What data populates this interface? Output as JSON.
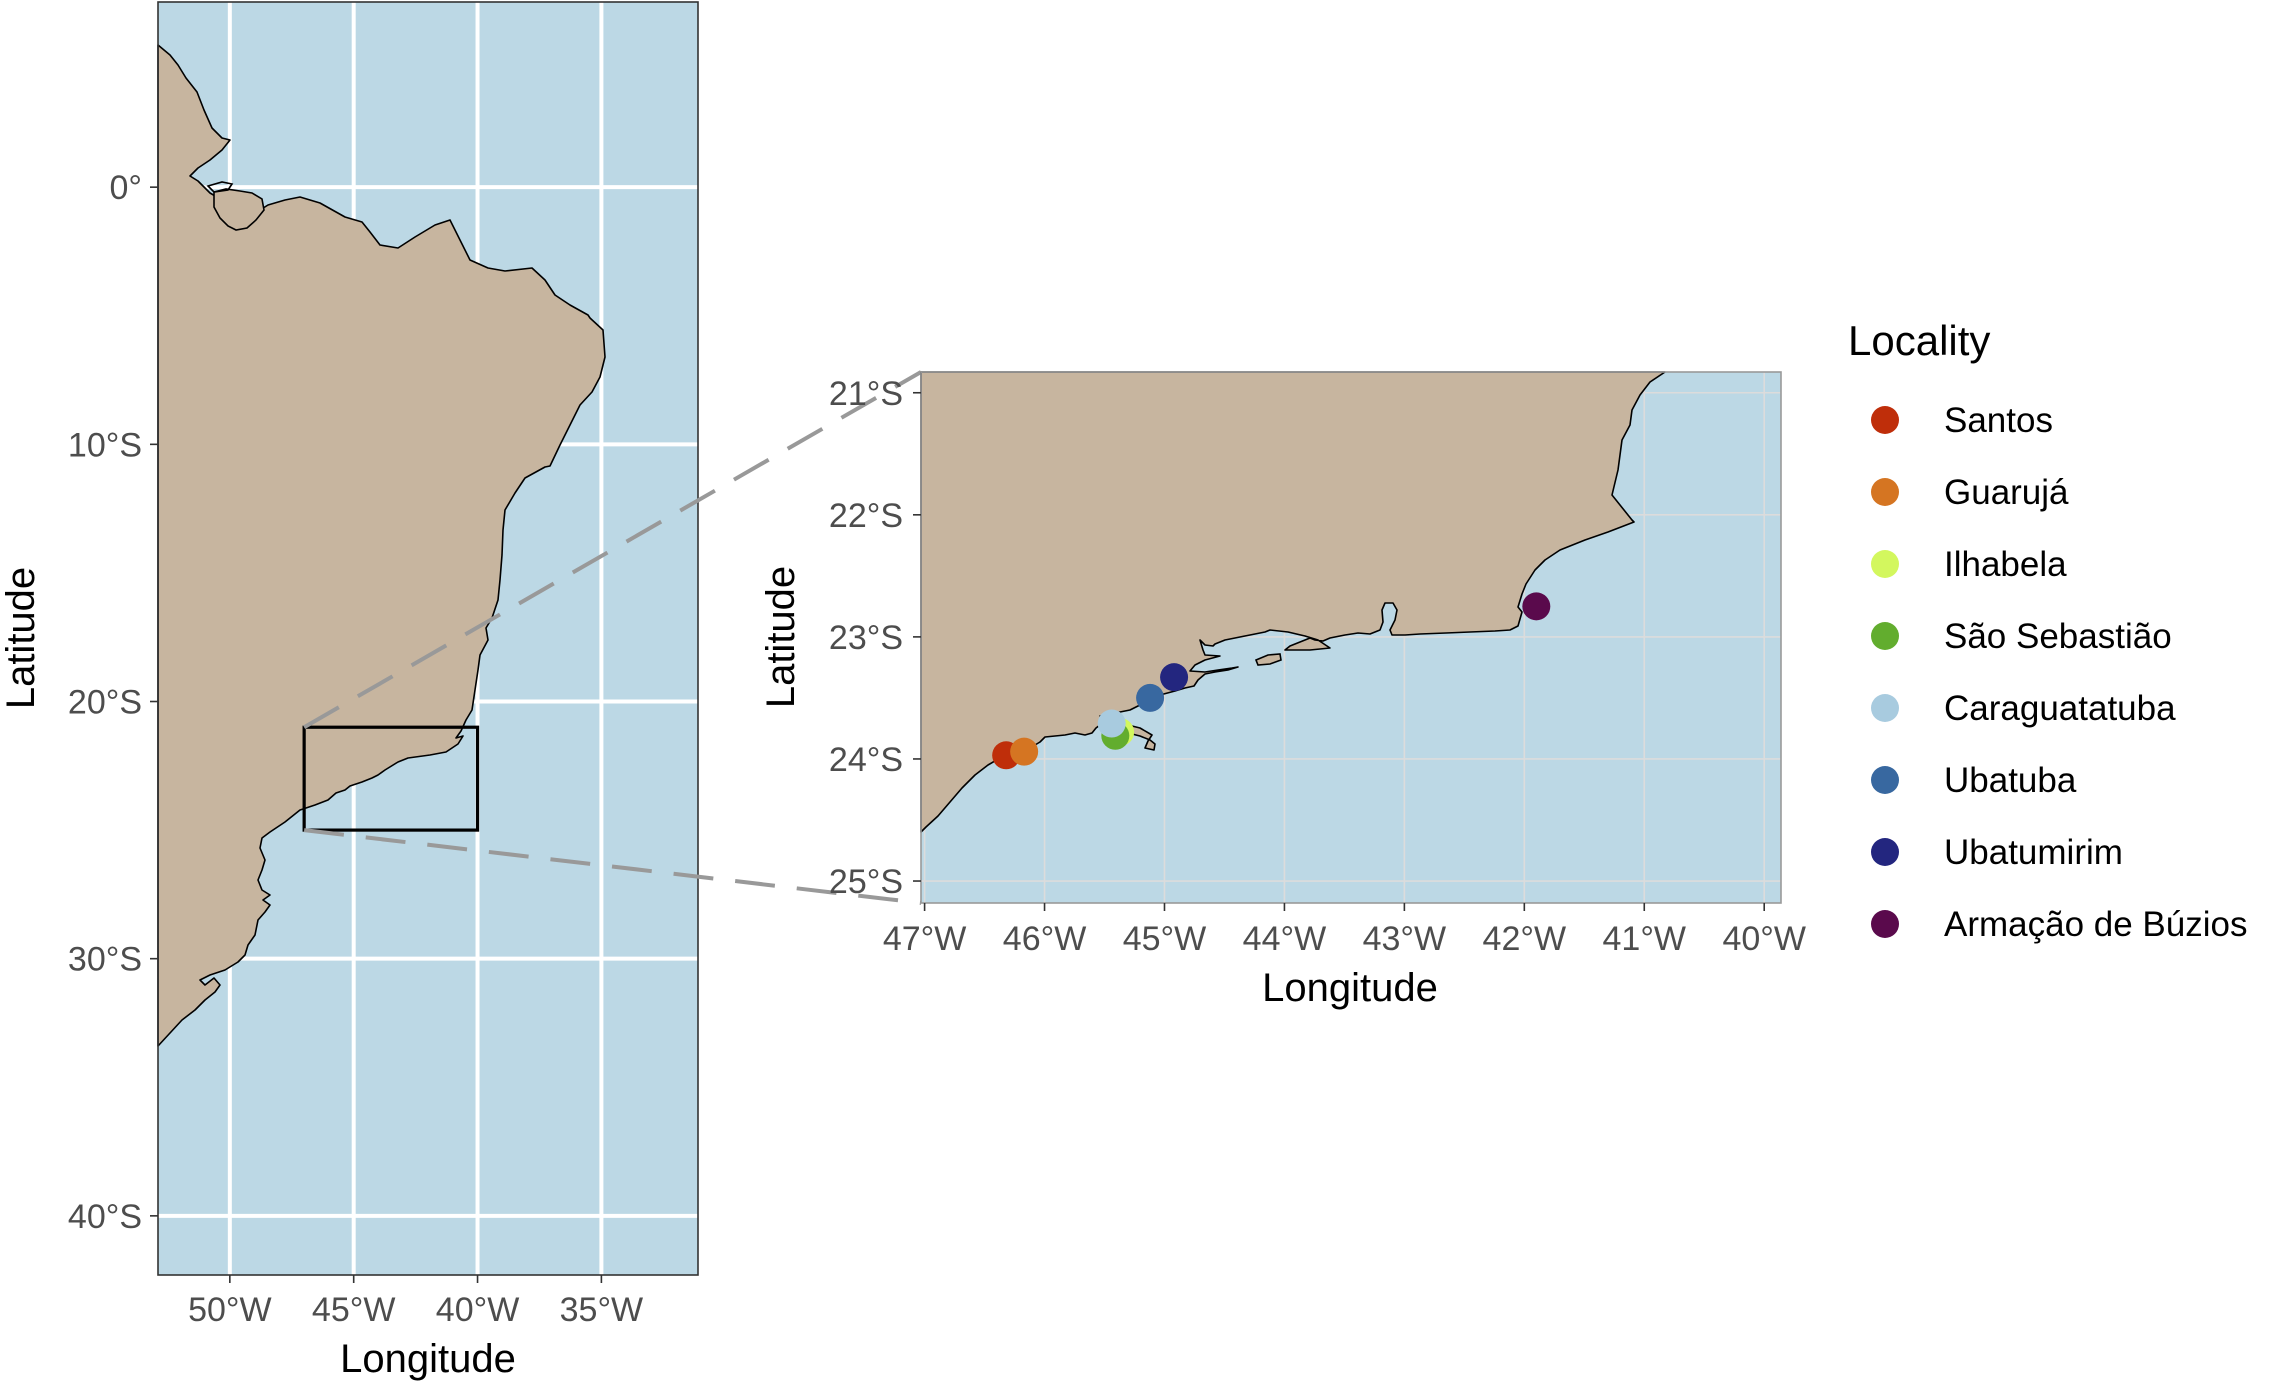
{
  "overview_map": {
    "x_label": "Longitude",
    "y_label": "Latitude",
    "x_ticks": [
      "50°W",
      "45°W",
      "40°W",
      "35°W"
    ],
    "x_tick_values": [
      -50,
      -45,
      -40,
      -35
    ],
    "y_ticks": [
      "0°",
      "10°S",
      "20°S",
      "30°S",
      "40°S"
    ],
    "y_tick_values": [
      0,
      -10,
      -20,
      -30,
      -40
    ],
    "xlim": [
      -52.9,
      -31.1
    ],
    "ylim": [
      -42.3,
      7.2
    ],
    "inset_box": {
      "lon": [
        -47,
        -40
      ],
      "lat": [
        -25,
        -21
      ]
    }
  },
  "inset_map": {
    "x_label": "Longitude",
    "y_label": "Latitude",
    "x_ticks": [
      "47°W",
      "46°W",
      "45°W",
      "44°W",
      "43°W",
      "42°W",
      "41°W",
      "40°W"
    ],
    "x_tick_values": [
      -47,
      -46,
      -45,
      -44,
      -43,
      -42,
      -41,
      -40
    ],
    "y_ticks": [
      "21°S",
      "22°S",
      "23°S",
      "24°S",
      "25°S"
    ],
    "y_tick_values": [
      -21,
      -22,
      -23,
      -24,
      -25
    ],
    "xlim": [
      -47.03,
      -39.86
    ],
    "ylim": [
      -25.18,
      -20.83
    ]
  },
  "legend": {
    "title": "Locality",
    "items": [
      {
        "label": "Santos",
        "color": "#bf2e0a"
      },
      {
        "label": "Guarujá",
        "color": "#d57522"
      },
      {
        "label": "Ilhabela",
        "color": "#d3f75e"
      },
      {
        "label": "São Sebastião",
        "color": "#62ad2e"
      },
      {
        "label": "Caraguatatuba",
        "color": "#a8cbdf"
      },
      {
        "label": "Ubatuba",
        "color": "#3868a0"
      },
      {
        "label": "Ubatumirim",
        "color": "#23267f"
      },
      {
        "label": "Armação de Búzios",
        "color": "#5a0a4c"
      }
    ]
  },
  "chart_data": {
    "type": "scatter",
    "xlabel": "Longitude",
    "ylabel": "Latitude",
    "xlim": [
      -47.03,
      -39.86
    ],
    "ylim": [
      -25.18,
      -20.83
    ],
    "series": [
      {
        "name": "Santos",
        "x": [
          -46.32
        ],
        "y": [
          -23.97
        ]
      },
      {
        "name": "Guarujá",
        "x": [
          -46.17
        ],
        "y": [
          -23.94
        ]
      },
      {
        "name": "Ilhabela",
        "x": [
          -45.37
        ],
        "y": [
          -23.78
        ]
      },
      {
        "name": "São Sebastião",
        "x": [
          -45.41
        ],
        "y": [
          -23.81
        ]
      },
      {
        "name": "Caraguatatuba",
        "x": [
          -45.44
        ],
        "y": [
          -23.71
        ]
      },
      {
        "name": "Ubatuba",
        "x": [
          -45.12
        ],
        "y": [
          -23.5
        ]
      },
      {
        "name": "Ubatumirim",
        "x": [
          -44.92
        ],
        "y": [
          -23.33
        ]
      },
      {
        "name": "Armação de Búzios",
        "x": [
          -41.9
        ],
        "y": [
          -22.75
        ]
      }
    ]
  },
  "colors": {
    "ocean": "#bcd8e5",
    "land": "#c7b59f",
    "grid": "#ffffff",
    "inset_grid": "#dcdcdc",
    "connector": "#999999"
  }
}
